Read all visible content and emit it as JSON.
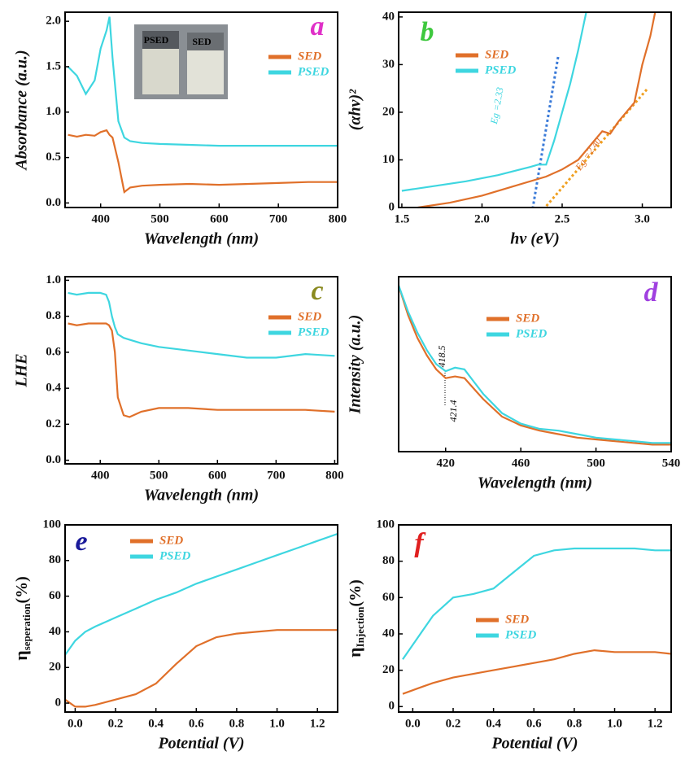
{
  "chart_data": [
    {
      "type": "line",
      "title": "a",
      "title_color": "#e030c8",
      "xlabel": "Wavelength (nm)",
      "ylabel": "Absorbance (a.u.)",
      "x": [
        345,
        360,
        375,
        390,
        400,
        410,
        415,
        420,
        430,
        440,
        450,
        470,
        500,
        550,
        600,
        650,
        700,
        750,
        800
      ],
      "series": [
        {
          "name": "SED",
          "color": "#e0702a",
          "values": [
            0.75,
            0.73,
            0.75,
            0.74,
            0.78,
            0.8,
            0.75,
            0.72,
            0.45,
            0.12,
            0.17,
            0.19,
            0.2,
            0.21,
            0.2,
            0.21,
            0.22,
            0.23,
            0.23
          ]
        },
        {
          "name": "PSED",
          "color": "#3ed6e0",
          "values": [
            1.5,
            1.4,
            1.2,
            1.35,
            1.7,
            1.9,
            2.05,
            1.6,
            0.9,
            0.72,
            0.68,
            0.66,
            0.65,
            0.64,
            0.63,
            0.63,
            0.63,
            0.63,
            0.63
          ]
        }
      ],
      "xlim": [
        340,
        800
      ],
      "xticks": [
        400,
        500,
        600,
        700,
        800
      ],
      "ylim": [
        -0.05,
        2.1
      ],
      "yticks": [
        {
          "value": 0,
          "label": "0.0"
        },
        0.5,
        {
          "value": 1,
          "label": "1.0"
        },
        1.5,
        {
          "value": 2,
          "label": "2.0"
        }
      ],
      "annotations": [
        "PSED",
        "SED"
      ]
    },
    {
      "type": "line",
      "title": "b",
      "title_color": "#3ec83e",
      "xlabel": "hv (eV)",
      "ylabel": "(αhν)²",
      "series": [
        {
          "name": "SED",
          "color": "#e0702a",
          "x": [
            1.6,
            1.8,
            2.0,
            2.2,
            2.4,
            2.5,
            2.6,
            2.7,
            2.75,
            2.8,
            2.85,
            2.9,
            2.95,
            3.0,
            3.05,
            3.08
          ],
          "values": [
            0,
            1,
            2.5,
            4.5,
            6.5,
            8,
            10,
            14,
            16,
            15.5,
            18,
            20,
            22,
            30,
            36,
            41
          ]
        },
        {
          "name": "PSED",
          "color": "#3ed6e0",
          "x": [
            1.5,
            1.7,
            1.9,
            2.1,
            2.3,
            2.35,
            2.4,
            2.45,
            2.5,
            2.55,
            2.6,
            2.65
          ],
          "values": [
            3.5,
            4.5,
            5.5,
            6.8,
            8.5,
            9,
            9,
            14,
            20,
            26,
            33,
            41
          ]
        }
      ],
      "xlim": [
        1.48,
        3.18
      ],
      "xticks": [
        1.5,
        {
          "value": 2,
          "label": "2.0"
        },
        2.5,
        {
          "value": 3,
          "label": "3.0"
        }
      ],
      "ylim": [
        0,
        41
      ],
      "yticks": [
        0,
        10,
        20,
        30,
        40
      ],
      "annotations": [
        "Eg =2.33",
        "Eg =2.40"
      ]
    },
    {
      "type": "line",
      "title": "c",
      "title_color": "#8a8a20",
      "xlabel": "Wavelength (nm)",
      "ylabel": "LHE",
      "x": [
        345,
        360,
        380,
        400,
        410,
        415,
        420,
        425,
        430,
        440,
        450,
        470,
        500,
        550,
        600,
        650,
        700,
        750,
        800
      ],
      "series": [
        {
          "name": "SED",
          "color": "#e0702a",
          "values": [
            0.76,
            0.75,
            0.76,
            0.76,
            0.76,
            0.75,
            0.72,
            0.6,
            0.35,
            0.25,
            0.24,
            0.27,
            0.29,
            0.29,
            0.28,
            0.28,
            0.28,
            0.28,
            0.27
          ]
        },
        {
          "name": "PSED",
          "color": "#3ed6e0",
          "values": [
            0.93,
            0.92,
            0.93,
            0.93,
            0.92,
            0.88,
            0.8,
            0.74,
            0.7,
            0.68,
            0.67,
            0.65,
            0.63,
            0.61,
            0.59,
            0.57,
            0.57,
            0.59,
            0.58
          ]
        }
      ],
      "xlim": [
        340,
        805
      ],
      "xticks": [
        400,
        500,
        600,
        700,
        800
      ],
      "ylim": [
        -0.02,
        1.02
      ],
      "yticks": [
        {
          "value": 0,
          "label": "0.0"
        },
        0.2,
        0.4,
        0.6,
        0.8,
        {
          "value": 1,
          "label": "1.0"
        }
      ]
    },
    {
      "type": "line",
      "title": "d",
      "title_color": "#a040e0",
      "xlabel": "Wavelength (nm)",
      "ylabel": "Intensity (a.u.)",
      "x": [
        395,
        400,
        405,
        410,
        415,
        420,
        425,
        430,
        435,
        440,
        450,
        460,
        470,
        480,
        490,
        500,
        510,
        520,
        530,
        540
      ],
      "series": [
        {
          "name": "SED",
          "color": "#e0702a",
          "values": [
            0.95,
            0.78,
            0.65,
            0.55,
            0.47,
            0.42,
            0.43,
            0.42,
            0.36,
            0.3,
            0.2,
            0.15,
            0.12,
            0.1,
            0.08,
            0.07,
            0.06,
            0.05,
            0.04,
            0.04
          ]
        },
        {
          "name": "PSED",
          "color": "#3ed6e0",
          "values": [
            0.95,
            0.8,
            0.68,
            0.58,
            0.5,
            0.46,
            0.48,
            0.47,
            0.4,
            0.33,
            0.22,
            0.16,
            0.13,
            0.12,
            0.1,
            0.08,
            0.07,
            0.06,
            0.05,
            0.05
          ]
        }
      ],
      "xlim": [
        395,
        540
      ],
      "xticks": [
        420,
        460,
        500,
        540
      ],
      "ylim": [
        0,
        1
      ],
      "annotations": [
        "418.5",
        "421.4"
      ]
    },
    {
      "type": "line",
      "title": "e",
      "title_color": "#1a1a9a",
      "xlabel": "Potential (V)",
      "ylabel": {
        "symbol": "η",
        "subscript": "seperation",
        "unit": "(%)"
      },
      "x": [
        -0.05,
        0,
        0.05,
        0.1,
        0.2,
        0.3,
        0.4,
        0.5,
        0.6,
        0.7,
        0.8,
        0.9,
        1.0,
        1.1,
        1.2,
        1.3
      ],
      "series": [
        {
          "name": "SED",
          "color": "#e0702a",
          "values": [
            2,
            -2,
            -2,
            -1,
            2,
            5,
            11,
            22,
            32,
            37,
            39,
            40,
            41,
            41,
            41,
            41
          ]
        },
        {
          "name": "PSED",
          "color": "#3ed6e0",
          "values": [
            27,
            35,
            40,
            43,
            48,
            53,
            58,
            62,
            67,
            71,
            75,
            79,
            83,
            87,
            91,
            95
          ]
        }
      ],
      "xlim": [
        -0.05,
        1.3
      ],
      "xticks": [
        {
          "value": 0,
          "label": "0.0"
        },
        0.2,
        0.4,
        0.6,
        0.8,
        {
          "value": 1,
          "label": "1.0"
        },
        1.2
      ],
      "ylim": [
        -5,
        100
      ],
      "yticks": [
        0,
        20,
        40,
        60,
        80,
        100
      ]
    },
    {
      "type": "line",
      "title": "f",
      "title_color": "#e02020",
      "xlabel": "Potential (V)",
      "ylabel": {
        "symbol": "η",
        "subscript": "Injection",
        "unit": "(%)"
      },
      "x": [
        -0.05,
        0,
        0.05,
        0.1,
        0.2,
        0.3,
        0.4,
        0.5,
        0.6,
        0.7,
        0.8,
        0.9,
        1.0,
        1.1,
        1.2,
        1.28
      ],
      "series": [
        {
          "name": "SED",
          "color": "#e0702a",
          "values": [
            7,
            9,
            11,
            13,
            16,
            18,
            20,
            22,
            24,
            26,
            29,
            31,
            30,
            30,
            30,
            29
          ]
        },
        {
          "name": "PSED",
          "color": "#3ed6e0",
          "values": [
            26,
            34,
            42,
            50,
            60,
            62,
            65,
            74,
            83,
            86,
            87,
            87,
            87,
            87,
            86,
            86
          ]
        }
      ],
      "xlim": [
        -0.07,
        1.28
      ],
      "xticks": [
        {
          "value": 0,
          "label": "0.0"
        },
        0.2,
        0.4,
        0.6,
        0.8,
        {
          "value": 1,
          "label": "1.0"
        },
        1.2
      ],
      "ylim": [
        -3,
        100
      ],
      "yticks": [
        0,
        20,
        40,
        60,
        80,
        100
      ]
    }
  ]
}
